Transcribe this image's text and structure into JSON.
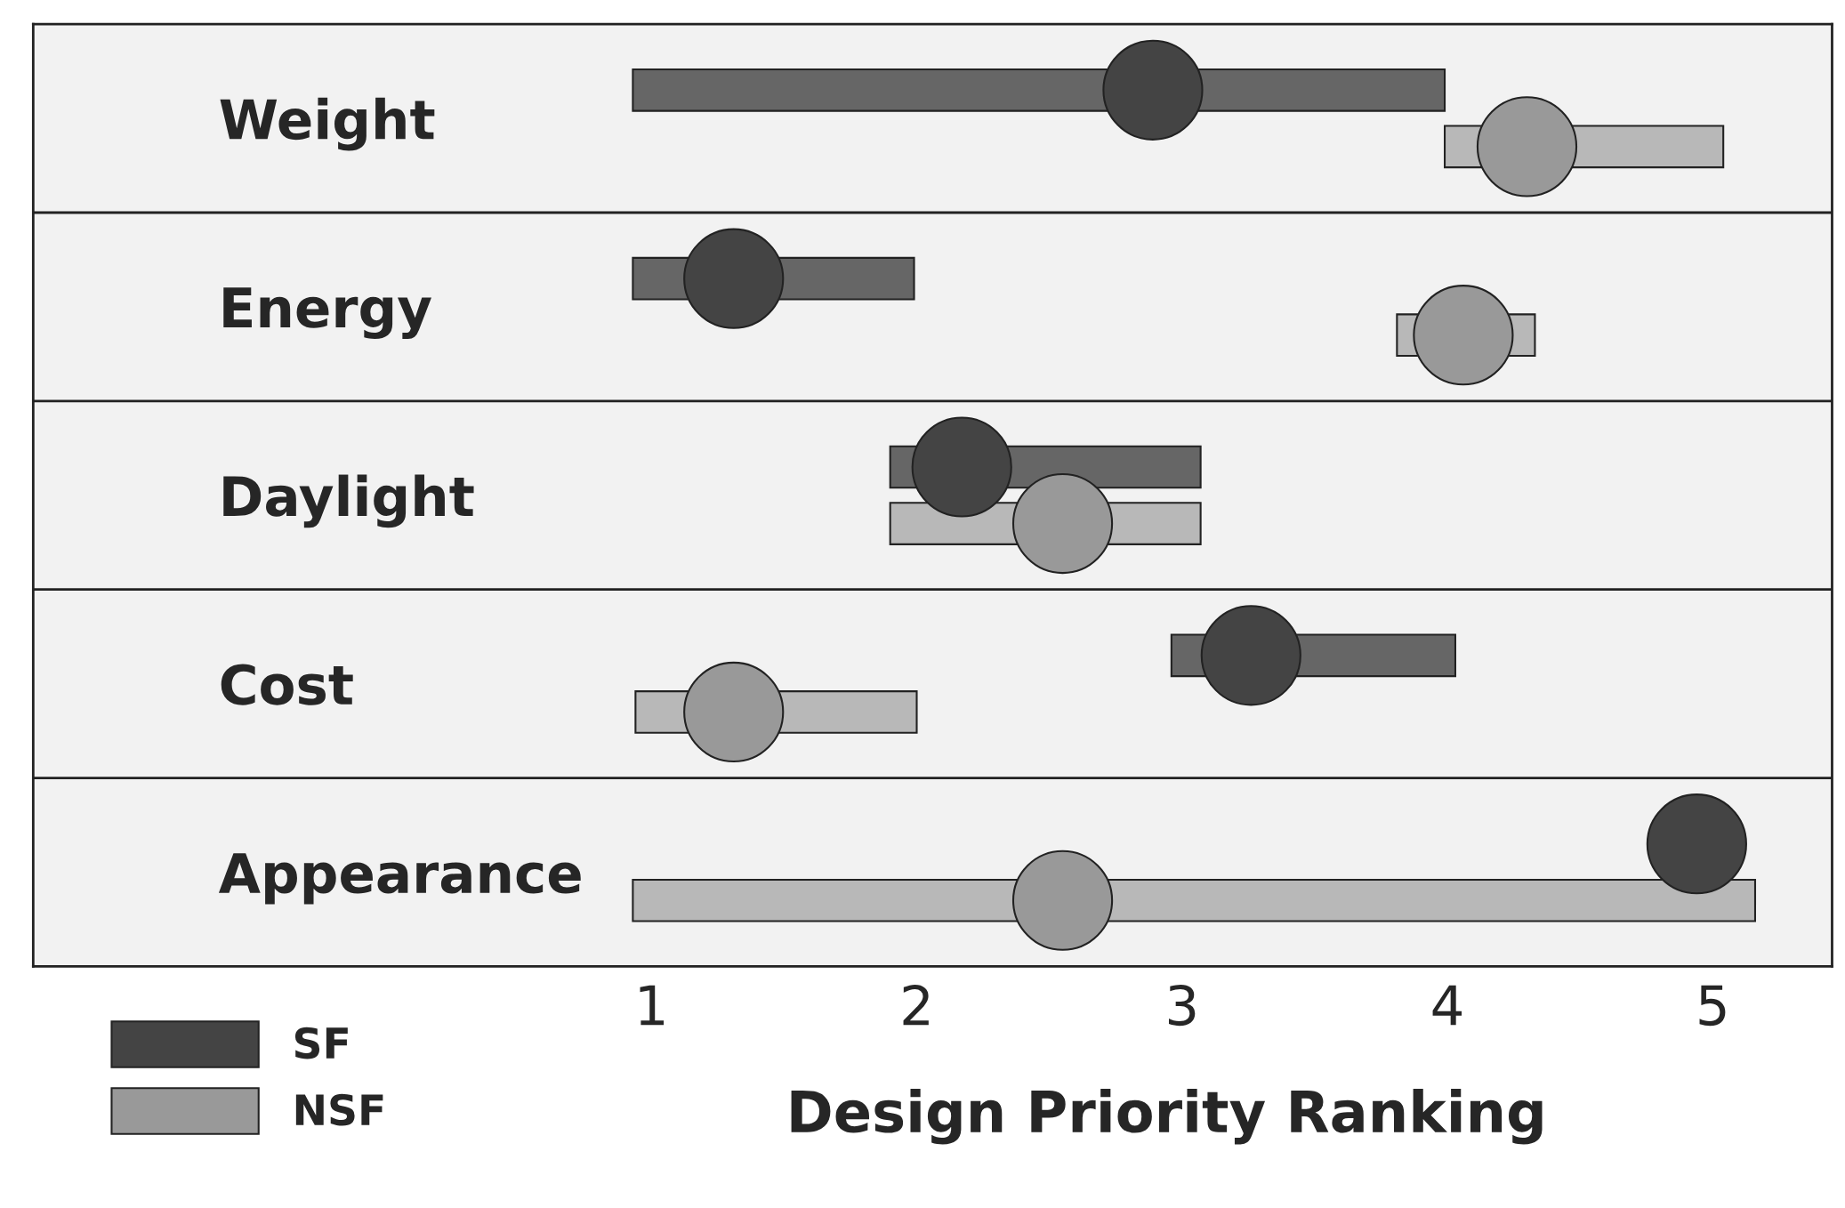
{
  "chart_data": {
    "type": "bar",
    "orientation": "horizontal",
    "xlabel": "Design Priority Ranking",
    "categories": [
      "Weight",
      "Energy",
      "Daylight",
      "Cost",
      "Appearance"
    ],
    "series": [
      {
        "color": "#666666",
        "base": [
          0.93,
          0.93,
          1.9,
          2.96,
          null
        ],
        "values": [
          3.06,
          1.06,
          1.17,
          1.07,
          null
        ]
      },
      {
        "color": "#b8b8b8",
        "base": [
          3.99,
          3.81,
          1.9,
          0.94,
          0.93
        ],
        "values": [
          1.05,
          0.52,
          1.17,
          1.06,
          4.23
        ]
      },
      {
        "type": "scatter",
        "name": "SF",
        "color": "#444444",
        "values": [
          2.89,
          1.31,
          2.17,
          3.26,
          4.94
        ]
      },
      {
        "type": "scatter",
        "name": "NSF",
        "color": "#999999",
        "values": [
          4.3,
          4.06,
          2.55,
          1.31,
          2.55
        ]
      }
    ],
    "xlim": [
      -1.33,
      5.45
    ],
    "xticks": [
      1,
      2,
      3,
      4,
      5
    ],
    "grid": "y",
    "legend": "bottom left"
  }
}
